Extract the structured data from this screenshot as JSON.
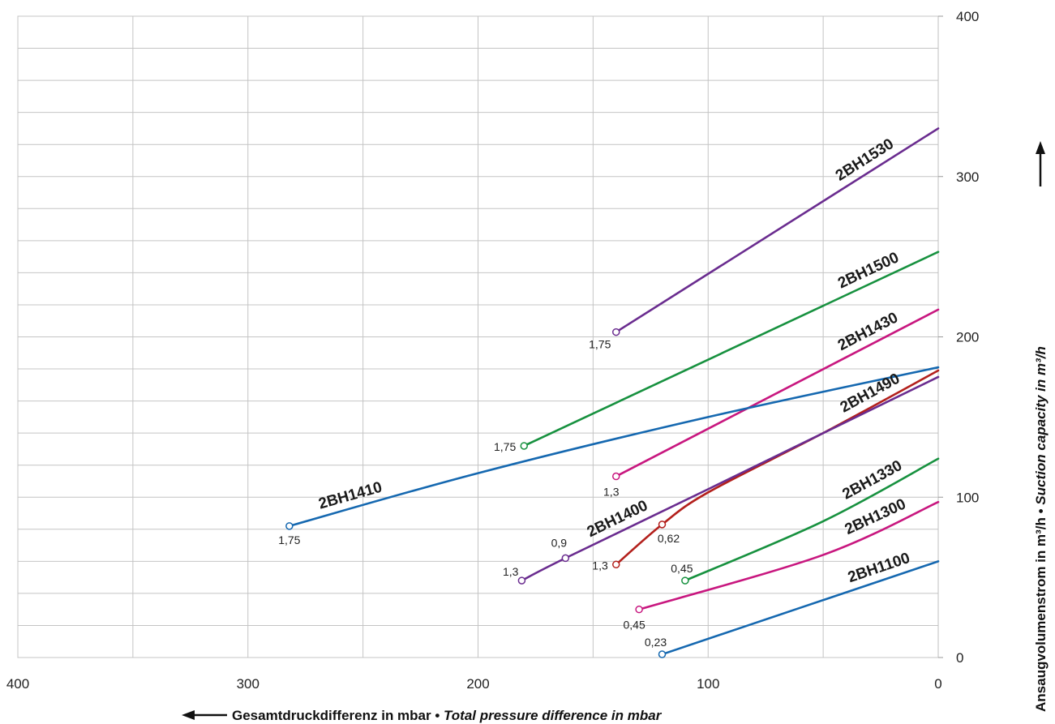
{
  "chart_data": {
    "type": "line",
    "xlabel_main": "Gesamtdruckdifferenz in mbar • ",
    "xlabel_italic": "Total pressure difference in mbar",
    "ylabel_main": "Ansaugvolumenstrom in m³/h • ",
    "ylabel_italic": "Suction capacity in m³/h",
    "xlim": [
      400,
      0
    ],
    "ylim": [
      0,
      400
    ],
    "x_ticks": [
      "400",
      "300",
      "200",
      "100",
      "0"
    ],
    "y_ticks": [
      "0",
      "100",
      "200",
      "300",
      "400"
    ],
    "grid": true,
    "series": [
      {
        "name": "2BH1530",
        "color": "#6a2c8f",
        "points": [
          [
            140,
            203
          ],
          [
            0,
            330
          ]
        ],
        "end_label": "1,75"
      },
      {
        "name": "2BH1500",
        "color": "#17913f",
        "points": [
          [
            180,
            132
          ],
          [
            0,
            253
          ]
        ],
        "end_label": "1,75"
      },
      {
        "name": "2BH1430",
        "color": "#c8177f",
        "points": [
          [
            140,
            113
          ],
          [
            0,
            217
          ]
        ],
        "end_label": "1,3"
      },
      {
        "name": "2BH1490",
        "color": "#b3201c",
        "points": [
          [
            140,
            58
          ],
          [
            120,
            83
          ],
          [
            100,
            103
          ],
          [
            50,
            140
          ],
          [
            0,
            179
          ]
        ],
        "end_label": "1,3",
        "mid_label": "0,62"
      },
      {
        "name": "2BH1410",
        "color": "#1568b0",
        "points": [
          [
            282,
            82
          ],
          [
            200,
            115
          ],
          [
            100,
            150
          ],
          [
            0,
            181
          ]
        ],
        "end_label": "1,75"
      },
      {
        "name": "2BH1400",
        "color": "#6a2c8f",
        "points": [
          [
            181,
            48
          ],
          [
            162,
            62
          ],
          [
            100,
            105
          ],
          [
            0,
            175
          ]
        ],
        "end_label": "1,3",
        "mid_label": "0,9"
      },
      {
        "name": "2BH1330",
        "color": "#17913f",
        "points": [
          [
            110,
            48
          ],
          [
            50,
            85
          ],
          [
            0,
            124
          ]
        ],
        "end_label": "0,45"
      },
      {
        "name": "2BH1300",
        "color": "#c8177f",
        "points": [
          [
            130,
            30
          ],
          [
            50,
            64
          ],
          [
            0,
            97
          ]
        ],
        "end_label": "0,45"
      },
      {
        "name": "2BH1100",
        "color": "#1568b0",
        "points": [
          [
            120,
            2
          ],
          [
            60,
            31
          ],
          [
            0,
            60
          ]
        ],
        "end_label": "0,23"
      }
    ]
  }
}
